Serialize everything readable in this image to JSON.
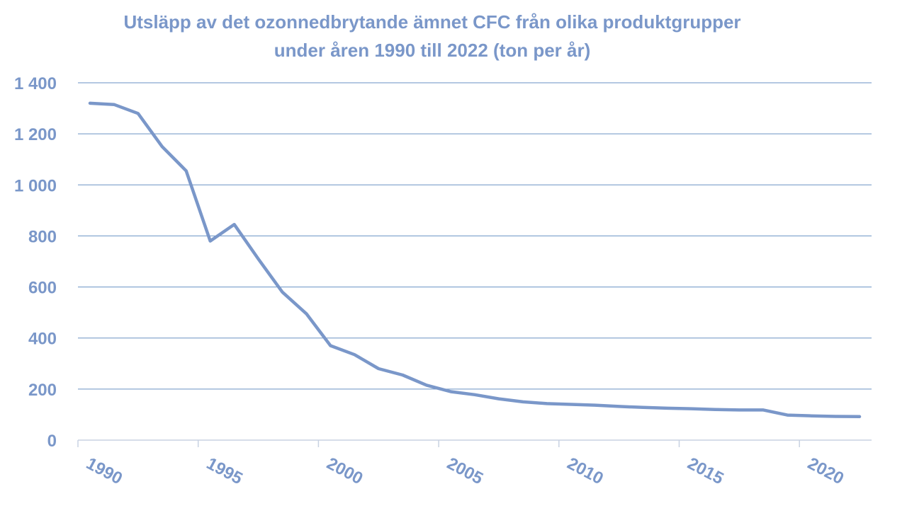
{
  "chart_data": {
    "type": "line",
    "title_line1": "Utsläpp av det ozonnedbrytande ämnet CFC från olika produktgrupper",
    "title_line2": "under åren 1990 till 2022 (ton per år)",
    "xlabel": "",
    "ylabel": "",
    "ylim": [
      0,
      1400
    ],
    "yticks": [
      0,
      200,
      400,
      600,
      800,
      1000,
      1200,
      1400
    ],
    "ytick_labels": [
      "0",
      "200",
      "400",
      "600",
      "800",
      "1 000",
      "1 200",
      "1 400"
    ],
    "xlim": [
      1990,
      2022
    ],
    "xticks": [
      1990,
      1995,
      2000,
      2005,
      2010,
      2015,
      2020
    ],
    "xtick_labels": [
      "1990",
      "1995",
      "2000",
      "2005",
      "2010",
      "2015",
      "2020"
    ],
    "grid": true,
    "legend": "none",
    "series": [
      {
        "x": [
          1990,
          1991,
          1992,
          1993,
          1994,
          1995,
          1996,
          1997,
          1998,
          1999,
          2000,
          2001,
          2002,
          2003,
          2004,
          2005,
          2006,
          2007,
          2008,
          2009,
          2010,
          2011,
          2012,
          2013,
          2014,
          2015,
          2016,
          2017,
          2018,
          2019,
          2020,
          2021,
          2022
        ],
        "values": [
          1320,
          1315,
          1280,
          1150,
          1055,
          780,
          845,
          710,
          580,
          495,
          370,
          335,
          280,
          255,
          215,
          190,
          178,
          162,
          150,
          143,
          140,
          137,
          132,
          128,
          125,
          123,
          120,
          118,
          118,
          98,
          95,
          93,
          92
        ]
      }
    ],
    "colors": {
      "line": "#7a97c9",
      "text": "#7a97c9",
      "grid": "#6a92c4",
      "axis": "#c8d2e2"
    }
  }
}
